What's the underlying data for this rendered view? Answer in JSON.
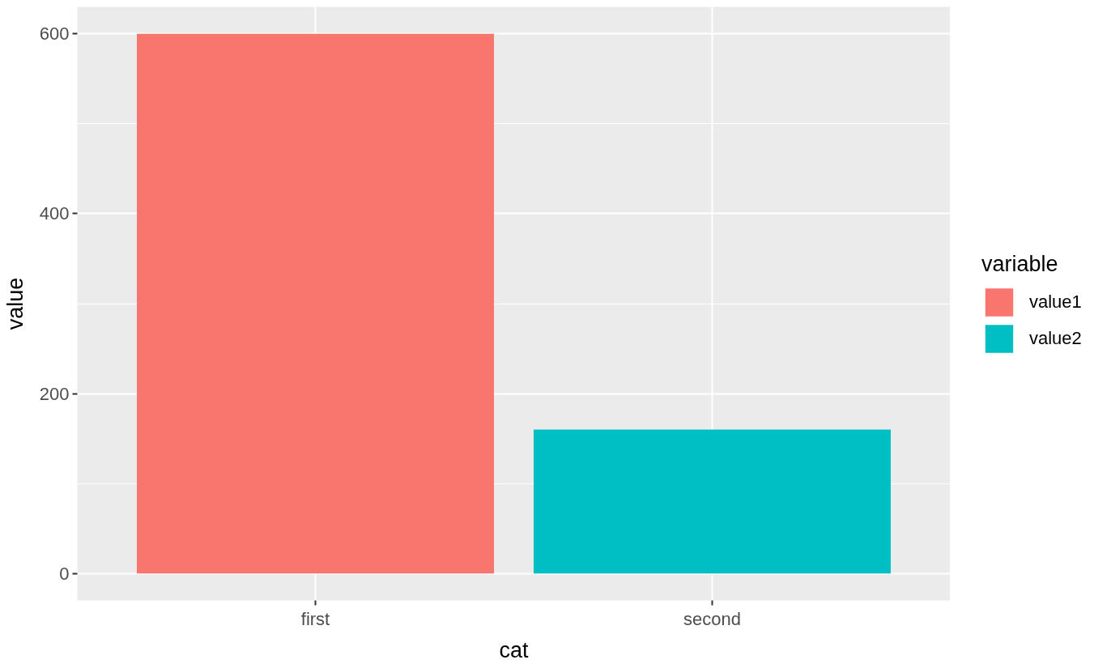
{
  "chart_data": {
    "type": "bar",
    "categories": [
      "first",
      "second"
    ],
    "series": [
      {
        "name": "value1",
        "color": "#f8766d",
        "values": [
          600,
          null
        ]
      },
      {
        "name": "value2",
        "color": "#00bfc4",
        "values": [
          null,
          160
        ]
      }
    ],
    "stacked": true,
    "xlabel": "cat",
    "ylabel": "value",
    "legend_title": "variable",
    "ylim": [
      -30,
      630
    ],
    "yticks": [
      0,
      200,
      400,
      600
    ],
    "grid": true,
    "legend": "right"
  }
}
